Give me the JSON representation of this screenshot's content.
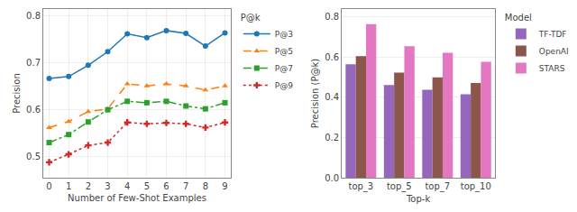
{
  "chart_data": [
    {
      "type": "line",
      "xlabel": "Number of Few-Shot Examples",
      "ylabel": "Precision",
      "x": [
        0,
        1,
        2,
        3,
        4,
        5,
        6,
        7,
        8,
        9
      ],
      "xlim": [
        -0.3,
        9.3
      ],
      "ylim": [
        0.455,
        0.815
      ],
      "xticks": [
        0,
        1,
        2,
        3,
        4,
        5,
        6,
        7,
        8,
        9
      ],
      "yticks": [
        0.5,
        0.6,
        0.7,
        0.8
      ],
      "grid": true,
      "legend_title": "P@k",
      "series": [
        {
          "name": "P@3",
          "marker": "circle",
          "line_style": "solid",
          "values": [
            0.667,
            0.671,
            0.695,
            0.724,
            0.762,
            0.754,
            0.769,
            0.763,
            0.736,
            0.764
          ]
        },
        {
          "name": "P@5",
          "marker": "triangle",
          "line_style": "dashed",
          "values": [
            0.562,
            0.575,
            0.596,
            0.602,
            0.655,
            0.651,
            0.655,
            0.651,
            0.642,
            0.651
          ]
        },
        {
          "name": "P@7",
          "marker": "square",
          "line_style": "dashdot",
          "values": [
            0.53,
            0.547,
            0.574,
            0.6,
            0.618,
            0.615,
            0.618,
            0.608,
            0.602,
            0.615
          ]
        },
        {
          "name": "P@9",
          "marker": "plus",
          "line_style": "dotted",
          "values": [
            0.488,
            0.505,
            0.524,
            0.53,
            0.573,
            0.57,
            0.572,
            0.57,
            0.562,
            0.573
          ]
        }
      ]
    },
    {
      "type": "bar",
      "xlabel": "Top-k",
      "ylabel": "Precision (P@k)",
      "categories": [
        "top_3",
        "top_5",
        "top_7",
        "top_10"
      ],
      "ylim": [
        0.0,
        0.84
      ],
      "yticks": [
        {
          "value": 0.0,
          "label": "0.0"
        },
        0.2,
        0.4,
        0.6,
        0.8
      ],
      "grid": "y",
      "legend_title": "Model",
      "series": [
        {
          "name": "TF-TDF",
          "values": [
            0.565,
            0.462,
            0.438,
            0.415
          ]
        },
        {
          "name": "OpenAI",
          "values": [
            0.605,
            0.523,
            0.5,
            0.472
          ]
        },
        {
          "name": "STARS",
          "values": [
            0.765,
            0.655,
            0.622,
            0.577
          ]
        }
      ]
    }
  ]
}
